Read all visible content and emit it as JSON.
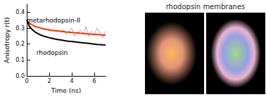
{
  "chart_data": {
    "type": "line",
    "y_label": "Anisotropy r(t)",
    "x_label": "Time (ns)",
    "x": [
      0,
      0.25,
      0.5,
      0.75,
      1,
      1.25,
      1.5,
      1.75,
      2,
      2.25,
      2.5,
      2.75,
      3,
      3.25,
      3.5,
      3.75,
      4,
      4.25,
      4.5,
      4.75,
      5,
      5.25,
      5.5,
      5.75,
      6,
      6.25,
      6.5,
      6.75,
      7
    ],
    "series": [
      {
        "color": "#aaaaaa",
        "values": [
          null,
          null,
          null,
          null,
          null,
          null,
          null,
          null,
          null,
          null,
          null,
          null,
          0.27,
          0.29,
          0.26,
          0.28,
          0.3,
          0.25,
          0.27,
          0.29,
          0.26,
          0.31,
          0.25,
          0.28,
          0.26,
          0.3,
          0.27,
          0.24,
          0.28
        ]
      },
      {
        "name": "metarhodopsin-II",
        "color": "#ff2a00",
        "values": [
          0.35,
          0.33,
          0.32,
          0.31,
          0.305,
          0.3,
          0.296,
          0.292,
          0.289,
          0.286,
          0.284,
          0.282,
          0.28,
          0.278,
          0.276,
          0.275,
          0.273,
          0.272,
          0.27,
          0.268,
          0.267,
          0.265,
          0.264,
          0.262,
          0.261,
          0.26,
          0.258,
          0.257,
          0.256
        ]
      },
      {
        "name": "rhodopsin",
        "color": "#000000",
        "values": [
          0.35,
          0.31,
          0.29,
          0.275,
          0.265,
          0.257,
          0.25,
          0.245,
          0.24,
          0.236,
          0.232,
          0.229,
          0.226,
          0.223,
          0.22,
          0.218,
          0.216,
          0.214,
          0.212,
          0.21,
          0.208,
          0.206,
          0.204,
          0.202,
          0.2,
          0.198,
          0.197,
          0.195,
          0.194
        ]
      }
    ],
    "xlim": [
      0,
      7
    ],
    "xticks": [
      0,
      2,
      4,
      6
    ],
    "ylim": [
      0,
      0.45
    ],
    "yticks": [
      {
        "value": 0,
        "label": "0.0"
      },
      {
        "value": 0.1,
        "label": "0.1"
      },
      {
        "value": 0.2,
        "label": "0.2"
      },
      {
        "value": 0.3,
        "label": "0.3"
      },
      {
        "value": 0.4,
        "label": "0.4"
      }
    ],
    "grid": false
  },
  "images": {
    "caption": "rhodopsin membranes"
  }
}
